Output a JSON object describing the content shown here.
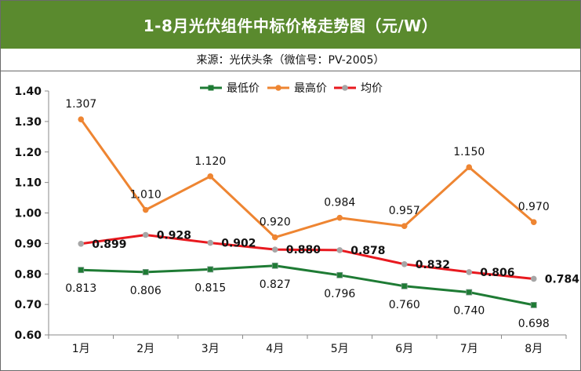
{
  "header": {
    "title": "1-8月光伏组件中标价格走势图（元/W）",
    "source": "来源：光伏头条（微信号：PV-2005）"
  },
  "chart_data": {
    "type": "line",
    "title": "1-8月光伏组件中标价格走势图（元/W）",
    "subtitle": "来源：光伏头条（微信号：PV-2005）",
    "categories": [
      "1月",
      "2月",
      "3月",
      "4月",
      "5月",
      "6月",
      "7月",
      "8月"
    ],
    "ylim": [
      0.6,
      1.4
    ],
    "yticks": [
      "0.60",
      "0.70",
      "0.80",
      "0.90",
      "1.00",
      "1.10",
      "1.20",
      "1.30",
      "1.40"
    ],
    "grid": false,
    "legend": "top-center",
    "series": [
      {
        "name": "最低价",
        "color": "#1e7b34",
        "marker": "square",
        "values": [
          0.813,
          0.806,
          0.815,
          0.827,
          0.796,
          0.76,
          0.74,
          0.698
        ],
        "labels": [
          "0.813",
          "0.806",
          "0.815",
          "0.827",
          "0.796",
          "0.760",
          "0.740",
          "0.698"
        ],
        "label_position": "below",
        "label_bold": false
      },
      {
        "name": "最高价",
        "color": "#ee8532",
        "marker": "circle",
        "values": [
          1.307,
          1.01,
          1.12,
          0.92,
          0.984,
          0.957,
          1.15,
          0.97
        ],
        "labels": [
          "1.307",
          "1.010",
          "1.120",
          "0.920",
          "0.984",
          "0.957",
          "1.150",
          "0.970"
        ],
        "label_position": "above",
        "label_bold": false
      },
      {
        "name": "均价",
        "color": "#e8191f",
        "marker_color": "#a6a6a6",
        "marker": "circle",
        "values": [
          0.899,
          0.928,
          0.902,
          0.88,
          0.878,
          0.832,
          0.806,
          0.784
        ],
        "labels": [
          "0.899",
          "0.928",
          "0.902",
          "0.880",
          "0.878",
          "0.832",
          "0.806",
          "0.784"
        ],
        "label_position": "right",
        "label_bold": true
      }
    ]
  }
}
